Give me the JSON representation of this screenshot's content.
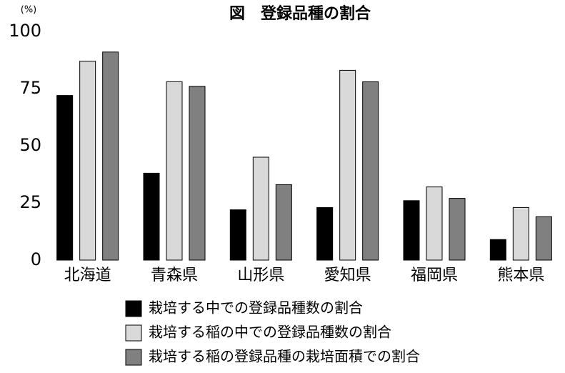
{
  "chart_data": {
    "type": "bar",
    "title": "図　登録品種の割合",
    "y_unit": "(%)",
    "categories": [
      "北海道",
      "青森県",
      "山形県",
      "愛知県",
      "福岡県",
      "熊本県"
    ],
    "series": [
      {
        "name": "栽培する中での登録品種数の割合",
        "color": "#000000",
        "values": [
          72,
          38,
          22,
          23,
          26,
          9
        ]
      },
      {
        "name": "栽培する稲の中での登録品種数の割合",
        "color": "#d9d9d9",
        "values": [
          87,
          78,
          45,
          83,
          32,
          23
        ]
      },
      {
        "name": "栽培する稲の登録品種の栽培面積での割合",
        "color": "#808080",
        "values": [
          91,
          76,
          33,
          78,
          27,
          19
        ]
      }
    ],
    "ylim": [
      0,
      100
    ],
    "yticks": [
      0,
      25,
      50,
      75,
      100
    ],
    "grid": false,
    "legend": "bottom"
  }
}
